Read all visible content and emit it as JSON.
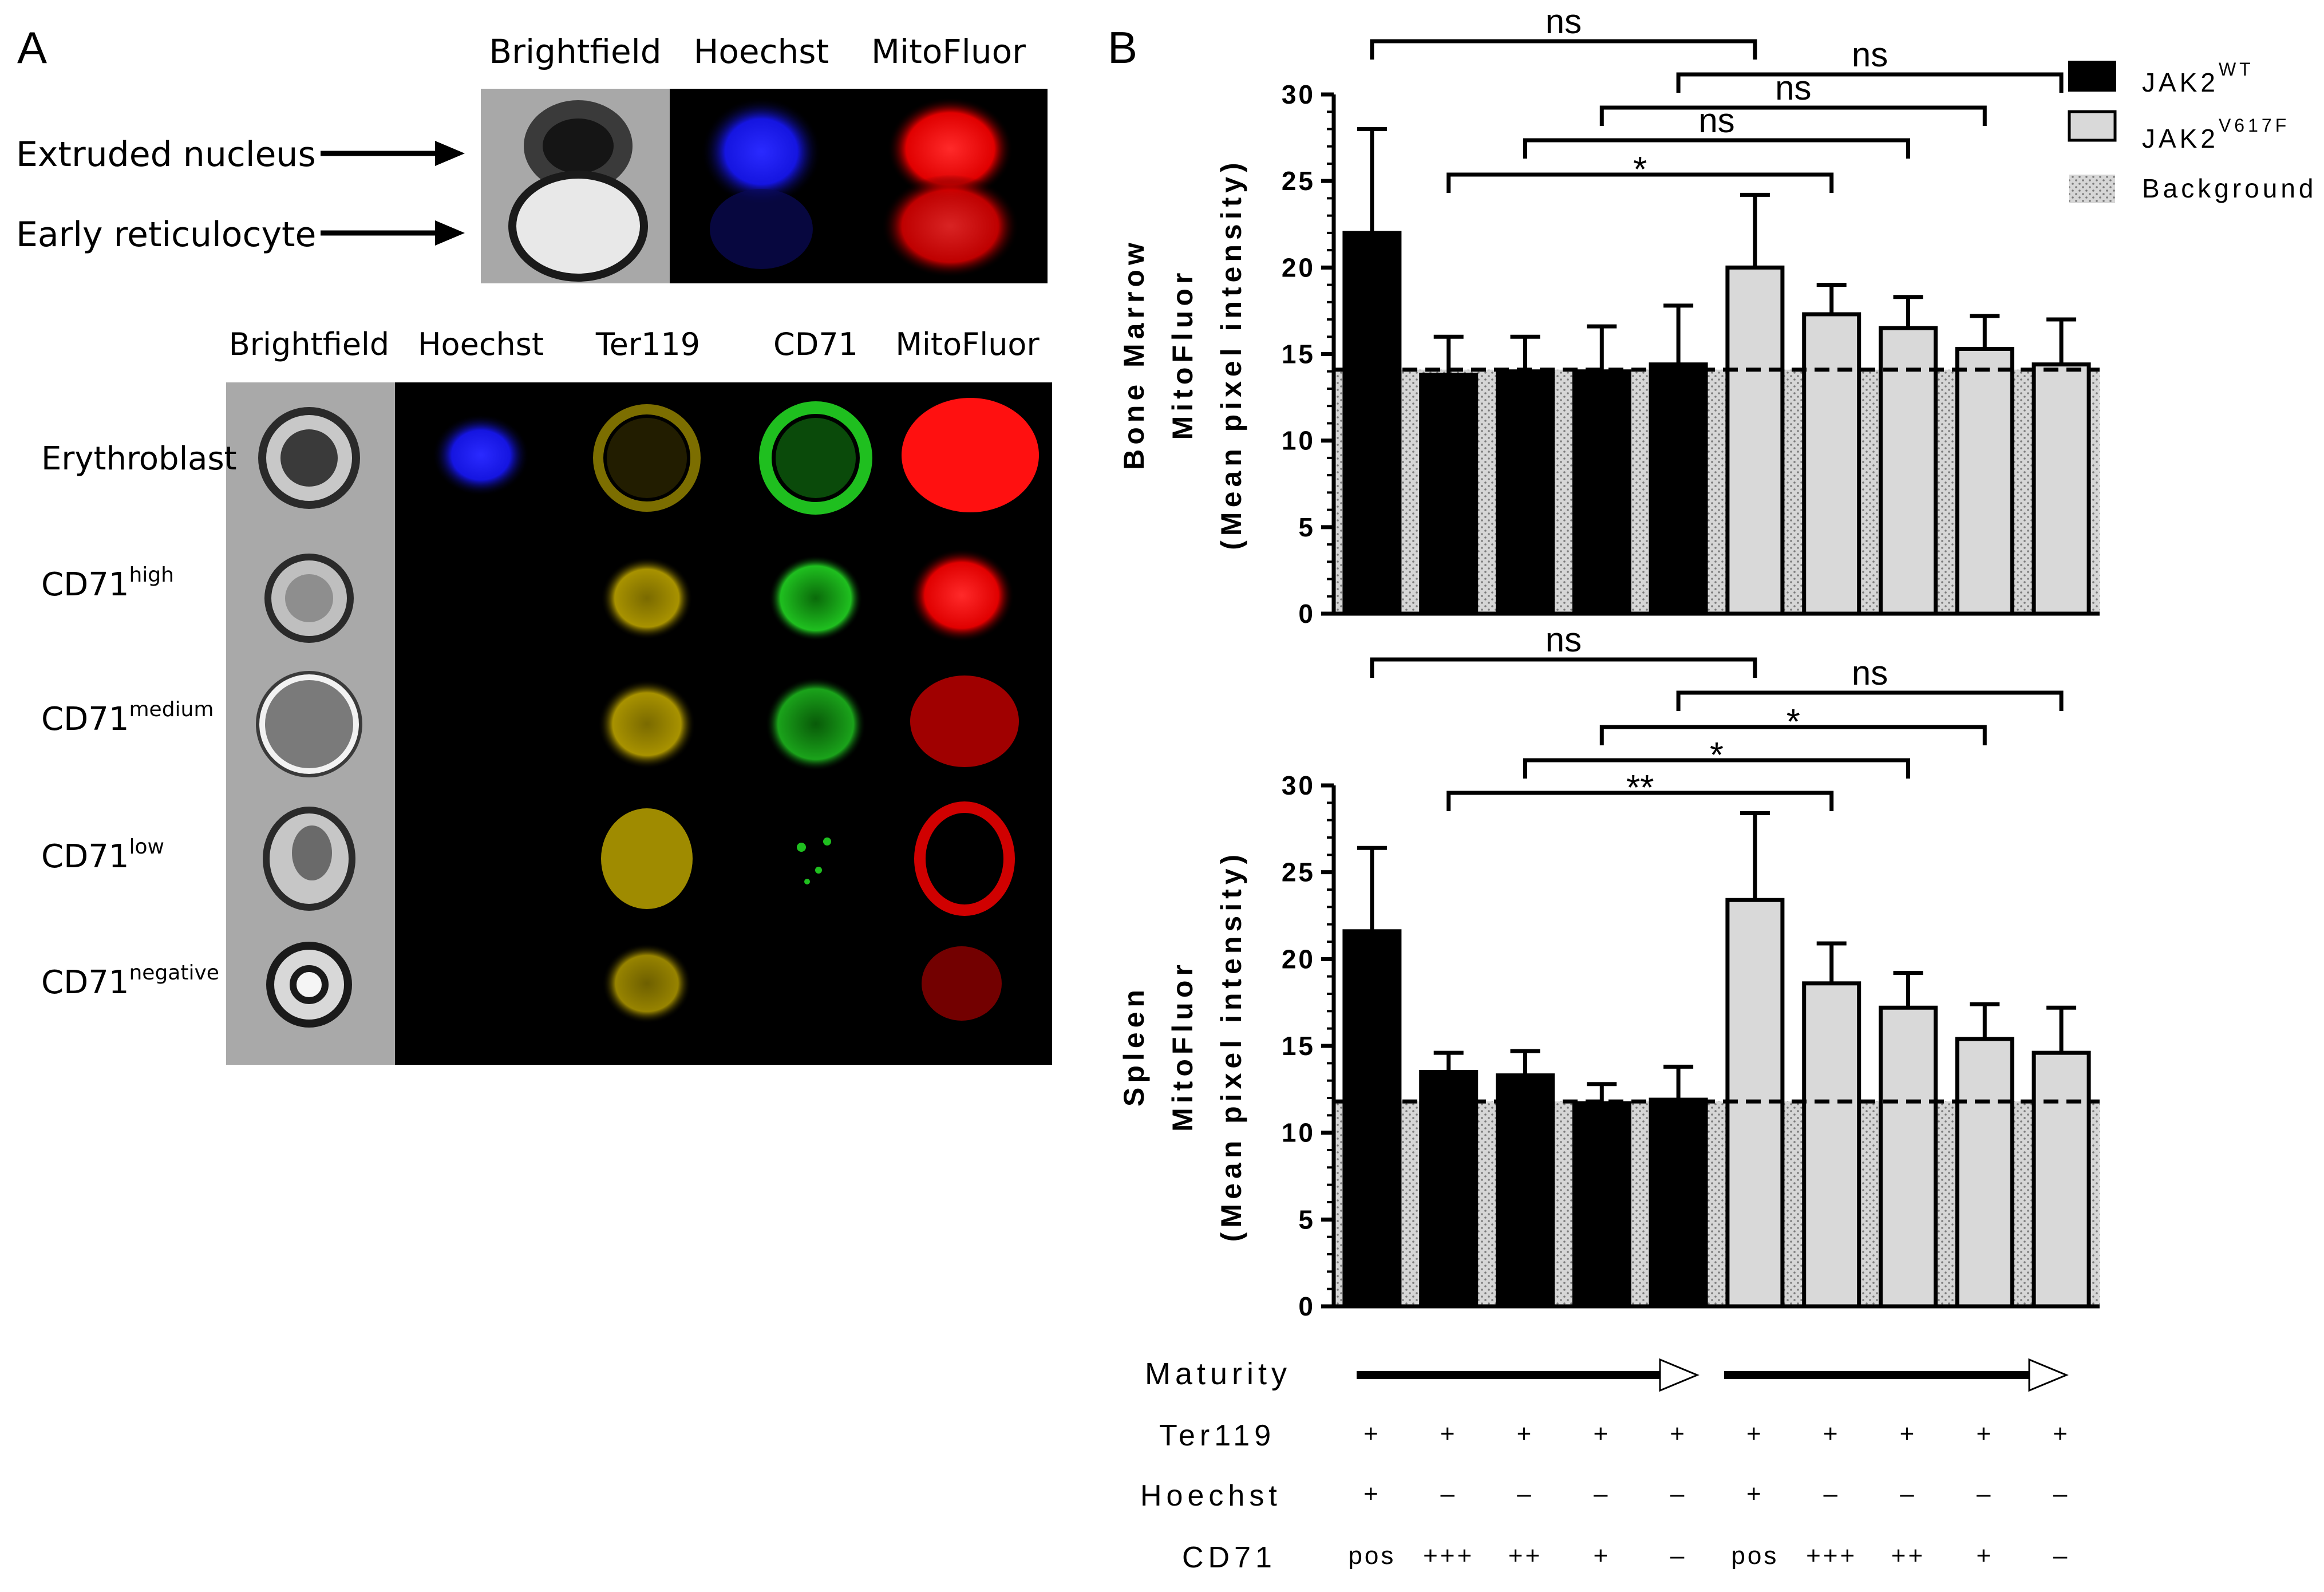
{
  "panelA": {
    "letter": "A",
    "top": {
      "channels": [
        "Brightfield",
        "Hoechst",
        "MitoFluor"
      ],
      "rows": [
        "Extruded nucleus",
        "Early reticulocyte"
      ]
    },
    "bottom": {
      "channels": [
        "Brightfield",
        "Hoechst",
        "Ter119",
        "CD71",
        "MitoFluor"
      ],
      "rows": [
        {
          "base": "Erythroblast",
          "sup": ""
        },
        {
          "base": "CD71",
          "sup": "high"
        },
        {
          "base": "CD71",
          "sup": "medium"
        },
        {
          "base": "CD71",
          "sup": "low"
        },
        {
          "base": "CD71",
          "sup": "negative"
        }
      ]
    },
    "colors": {
      "hoechst": "#1010ff",
      "ter119": "#c8b400",
      "cd71": "#20c020",
      "mitofluor": "#ff1010"
    }
  },
  "panelB": {
    "letter": "B",
    "legend": [
      {
        "base": "JAK2",
        "sup": "WT",
        "fill": "#000000"
      },
      {
        "base": "JAK2",
        "sup": "V617F",
        "fill": "#d9d9d9"
      },
      {
        "base": "Background",
        "sup": "",
        "fill": "dotted"
      }
    ],
    "chart_data": [
      {
        "type": "bar",
        "title": "Bone Marrow",
        "ylabel_lines": [
          "Bone Marrow",
          "MitoFluor",
          "(Mean pixel intensity)"
        ],
        "ylim": [
          0,
          30
        ],
        "yticks": [
          "0",
          "5",
          "10",
          "15",
          "20",
          "25",
          "30"
        ],
        "categories": [
          "pos/+/+",
          "+++/-/+",
          "++/-/+",
          "+/-/+",
          "-/-/+",
          "pos/+/+",
          "+++/-/+",
          "++/-/+",
          "+/-/+",
          "-/-/+"
        ],
        "series": [
          {
            "name": "JAK2 WT",
            "values": [
              22.0,
              13.8,
              14.0,
              14.0,
              14.4,
              null,
              null,
              null,
              null,
              null
            ],
            "errors": [
              6.0,
              2.2,
              2.0,
              2.6,
              3.4,
              null,
              null,
              null,
              null,
              null
            ]
          },
          {
            "name": "JAK2 V617F",
            "values": [
              null,
              null,
              null,
              null,
              null,
              20.0,
              17.3,
              16.5,
              15.3,
              14.4
            ],
            "errors": [
              null,
              null,
              null,
              null,
              null,
              4.2,
              1.7,
              1.8,
              1.9,
              2.6
            ]
          }
        ],
        "background": 14.1,
        "significance": [
          {
            "from": 0,
            "to": 5,
            "label": "ns"
          },
          {
            "from": 4,
            "to": 9,
            "label": "ns"
          },
          {
            "from": 3,
            "to": 8,
            "label": "ns"
          },
          {
            "from": 2,
            "to": 7,
            "label": "ns"
          },
          {
            "from": 1,
            "to": 6,
            "label": "*"
          }
        ]
      },
      {
        "type": "bar",
        "title": "Spleen",
        "ylabel_lines": [
          "Spleen",
          "MitoFluor",
          "(Mean pixel intensity)"
        ],
        "ylim": [
          0,
          30
        ],
        "yticks": [
          "0",
          "5",
          "10",
          "15",
          "20",
          "25",
          "30"
        ],
        "categories": [
          "pos/+/+",
          "+++/-/+",
          "++/-/+",
          "+/-/+",
          "-/-/+",
          "pos/+/+",
          "+++/-/+",
          "++/-/+",
          "+/-/+",
          "-/-/+"
        ],
        "series": [
          {
            "name": "JAK2 WT",
            "values": [
              21.6,
              13.5,
              13.3,
              11.7,
              11.9,
              null,
              null,
              null,
              null,
              null
            ],
            "errors": [
              4.8,
              1.1,
              1.4,
              1.1,
              1.9,
              null,
              null,
              null,
              null,
              null
            ]
          },
          {
            "name": "JAK2 V617F",
            "values": [
              null,
              null,
              null,
              null,
              null,
              23.4,
              18.6,
              17.2,
              15.4,
              14.6
            ],
            "errors": [
              null,
              null,
              null,
              null,
              null,
              5.0,
              2.3,
              2.0,
              2.0,
              2.6
            ]
          }
        ],
        "background": 11.8,
        "significance": [
          {
            "from": 0,
            "to": 5,
            "label": "ns"
          },
          {
            "from": 4,
            "to": 9,
            "label": "ns"
          },
          {
            "from": 3,
            "to": 8,
            "label": "*"
          },
          {
            "from": 2,
            "to": 7,
            "label": "*"
          },
          {
            "from": 1,
            "to": 6,
            "label": "**"
          }
        ]
      }
    ],
    "table": {
      "maturity_label": "Maturity",
      "rows": [
        {
          "label": "Ter119",
          "values": [
            "+",
            "+",
            "+",
            "+",
            "+",
            "+",
            "+",
            "+",
            "+",
            "+"
          ]
        },
        {
          "label": "Hoechst",
          "values": [
            "+",
            "–",
            "–",
            "–",
            "–",
            "+",
            "–",
            "–",
            "–",
            "–"
          ]
        },
        {
          "label": "CD71",
          "values": [
            "pos",
            "+++",
            "++",
            "+",
            "–",
            "pos",
            "+++",
            "++",
            "+",
            "–"
          ]
        }
      ]
    }
  }
}
